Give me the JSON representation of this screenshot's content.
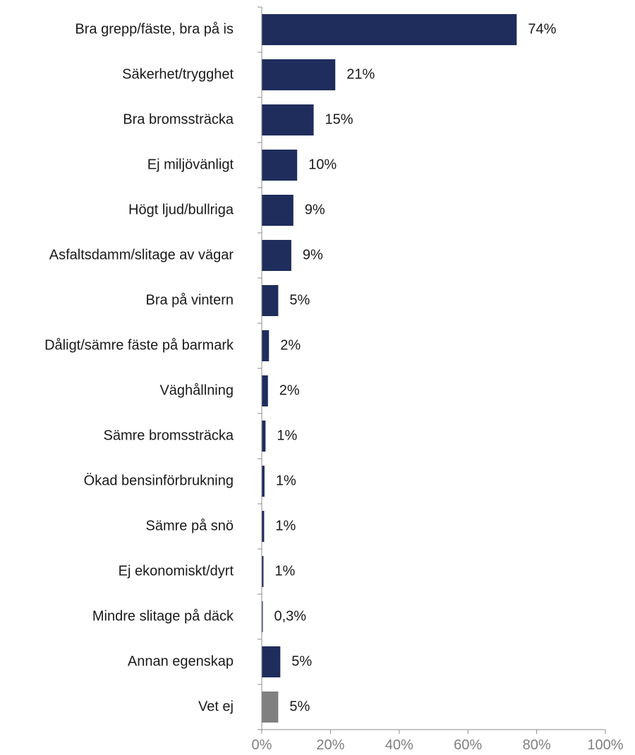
{
  "chart_data": {
    "type": "bar",
    "orientation": "horizontal",
    "categories": [
      "Bra grepp/fäste, bra på is",
      "Säkerhet/trygghet",
      "Bra bromssträcka",
      "Ej miljövänligt",
      "Högt ljud/bullriga",
      "Asfaltsdamm/slitage av vägar",
      "Bra på vintern",
      "Dåligt/sämre fäste på barmark",
      "Väghållning",
      "Sämre bromssträcka",
      "Ökad bensinförbrukning",
      "Sämre på snö",
      "Ej ekonomiskt/dyrt",
      "Mindre slitage på däck",
      "Annan egenskap",
      "Vet ej"
    ],
    "values": [
      74.2,
      21.4,
      15.1,
      10.3,
      9.2,
      8.6,
      4.8,
      2.1,
      1.8,
      1.1,
      0.8,
      0.7,
      0.5,
      0.3,
      5.4,
      4.8
    ],
    "value_labels": [
      "74%",
      "21%",
      "15%",
      "10%",
      "9%",
      "9%",
      "5%",
      "2%",
      "2%",
      "1%",
      "1%",
      "1%",
      "1%",
      "0,3%",
      "5%",
      "5%"
    ],
    "bar_colors": [
      "#1f2d5c",
      "#1f2d5c",
      "#1f2d5c",
      "#1f2d5c",
      "#1f2d5c",
      "#1f2d5c",
      "#1f2d5c",
      "#1f2d5c",
      "#1f2d5c",
      "#1f2d5c",
      "#1f2d5c",
      "#1f2d5c",
      "#1f2d5c",
      "#1f2d5c",
      "#1f2d5c",
      "#808080"
    ],
    "x_ticks": [
      0,
      20,
      40,
      60,
      80,
      100
    ],
    "x_tick_labels": [
      "0%",
      "20%",
      "40%",
      "60%",
      "80%",
      "100%"
    ],
    "xlim": [
      0,
      100
    ],
    "title": "",
    "xlabel": "",
    "ylabel": "",
    "grid": false,
    "legend": "none"
  }
}
